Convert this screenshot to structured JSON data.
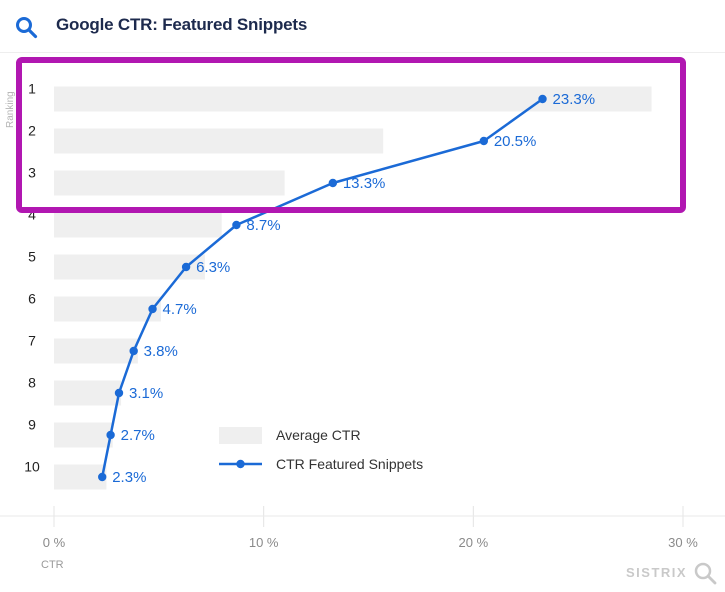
{
  "header": {
    "title": "Google CTR: Featured Snippets",
    "icon": "search-icon"
  },
  "watermark": "SISTRIX",
  "chart_data": {
    "type": "bar",
    "title": "Google CTR: Featured Snippets",
    "ylabel": "Ranking",
    "xlabel": "CTR",
    "categories": [
      "1",
      "2",
      "3",
      "4",
      "5",
      "6",
      "7",
      "8",
      "9",
      "10"
    ],
    "xlim": [
      0,
      30
    ],
    "xticks": [
      "0 %",
      "10 %",
      "20 %",
      "30 %"
    ],
    "series": [
      {
        "name": "Average CTR",
        "type": "bar",
        "values": [
          28.5,
          15.7,
          11.0,
          8.0,
          7.2,
          5.1,
          4.0,
          3.2,
          2.8,
          2.5
        ]
      },
      {
        "name": "CTR Featured Snippets",
        "type": "line",
        "values": [
          23.3,
          20.5,
          13.3,
          8.7,
          6.3,
          4.7,
          3.8,
          3.1,
          2.7,
          2.3
        ],
        "labels": [
          "23.3%",
          "20.5%",
          "13.3%",
          "8.7%",
          "6.3%",
          "4.7%",
          "3.8%",
          "3.1%",
          "2.7%",
          "2.3%"
        ]
      }
    ],
    "legend": [
      "Average CTR",
      "CTR Featured Snippets"
    ],
    "legend_position": "bottom-right",
    "highlight": {
      "rankings": [
        "1",
        "2",
        "3"
      ]
    },
    "colors": {
      "bar": "#efefef",
      "line": "#1b6ad6",
      "label": "#1b6ad6",
      "highlight": "#b117b1",
      "grid": "#e4e4e4"
    }
  }
}
